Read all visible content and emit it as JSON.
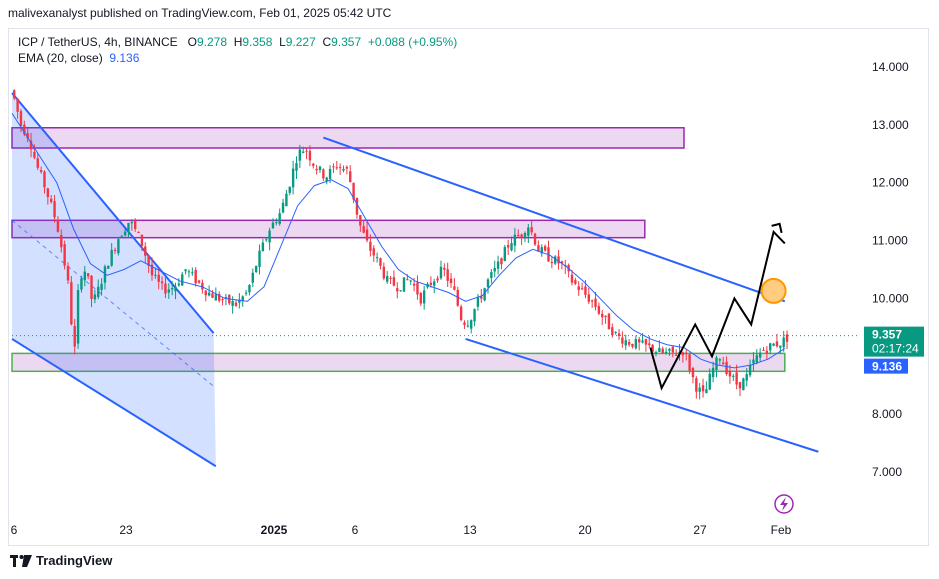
{
  "header": {
    "publisher": "malivexanalyst published on TradingView.com, Feb 01, 2025 05:42 UTC"
  },
  "legend": {
    "symbol": "ICP / TetherUS, 4h, BINANCE",
    "open_label": "O",
    "open": "9.278",
    "high_label": "H",
    "high": "9.358",
    "low_label": "L",
    "low": "9.227",
    "close_label": "C",
    "close": "9.357",
    "change": "+0.088 (+0.95%)",
    "ema_label": "EMA (20, close)",
    "ema_value": "9.136"
  },
  "footer": {
    "brand": "TradingView"
  },
  "colors": {
    "up": "#089981",
    "down": "#f23645",
    "ema": "#2962ff",
    "channel": "#2962ff",
    "zone_purple": "#9c27b0",
    "zone_green": "#4caf50",
    "projection": "#000000",
    "target": "#ff9800"
  },
  "icons": {
    "flash": "lightning-icon",
    "logo": "tradingview-logo-icon"
  },
  "chart_data": {
    "type": "candlestick",
    "symbol": "ICP / TetherUS",
    "interval": "4h",
    "exchange": "BINANCE",
    "ylim": [
      6.8,
      14.35
    ],
    "y_ticks": [
      "14.000",
      "13.000",
      "12.000",
      "11.000",
      "10.000",
      "8.000",
      "7.000"
    ],
    "x_ticks": [
      "6",
      "23",
      "2025",
      "6",
      "13",
      "20",
      "27",
      "Feb"
    ],
    "last_price": "9.357",
    "countdown": "02:17:24",
    "ema_price": "9.136",
    "price_path": [
      [
        0,
        13.6
      ],
      [
        8,
        13.0
      ],
      [
        15,
        12.8
      ],
      [
        22,
        12.3
      ],
      [
        30,
        11.9
      ],
      [
        40,
        11.3
      ],
      [
        48,
        10.5
      ],
      [
        52,
        10.0
      ],
      [
        55,
        8.8
      ],
      [
        60,
        10.4
      ],
      [
        66,
        10.5
      ],
      [
        72,
        9.9
      ],
      [
        78,
        10.2
      ],
      [
        85,
        10.6
      ],
      [
        95,
        11.05
      ],
      [
        105,
        11.35
      ],
      [
        115,
        11.0
      ],
      [
        125,
        10.4
      ],
      [
        135,
        10.15
      ],
      [
        145,
        10.2
      ],
      [
        155,
        10.5
      ],
      [
        165,
        10.3
      ],
      [
        175,
        10.1
      ],
      [
        190,
        9.95
      ],
      [
        200,
        9.9
      ],
      [
        210,
        10.1
      ],
      [
        220,
        10.7
      ],
      [
        230,
        11.2
      ],
      [
        240,
        11.5
      ],
      [
        248,
        12.0
      ],
      [
        255,
        12.5
      ],
      [
        262,
        12.6
      ],
      [
        270,
        12.3
      ],
      [
        280,
        12.1
      ],
      [
        290,
        12.3
      ],
      [
        300,
        12.2
      ],
      [
        310,
        11.3
      ],
      [
        318,
        10.9
      ],
      [
        325,
        10.7
      ],
      [
        335,
        10.3
      ],
      [
        345,
        10.2
      ],
      [
        355,
        10.35
      ],
      [
        365,
        10.0
      ],
      [
        375,
        10.3
      ],
      [
        385,
        10.5
      ],
      [
        395,
        10.1
      ],
      [
        402,
        9.6
      ],
      [
        408,
        9.6
      ],
      [
        415,
        9.9
      ],
      [
        425,
        10.3
      ],
      [
        435,
        10.6
      ],
      [
        445,
        11.0
      ],
      [
        455,
        11.1
      ],
      [
        460,
        11.3
      ],
      [
        465,
        11.1
      ],
      [
        470,
        10.85
      ],
      [
        480,
        10.7
      ],
      [
        490,
        10.6
      ],
      [
        500,
        10.3
      ],
      [
        510,
        10.1
      ],
      [
        520,
        9.9
      ],
      [
        530,
        9.6
      ],
      [
        540,
        9.35
      ],
      [
        550,
        9.25
      ],
      [
        560,
        9.2
      ],
      [
        570,
        9.15
      ],
      [
        580,
        9.05
      ],
      [
        590,
        9.05
      ],
      [
        600,
        9.1
      ],
      [
        610,
        8.5
      ],
      [
        618,
        8.3
      ],
      [
        625,
        8.75
      ],
      [
        632,
        9.0
      ],
      [
        640,
        8.7
      ],
      [
        648,
        8.5
      ],
      [
        655,
        8.6
      ],
      [
        662,
        8.9
      ],
      [
        670,
        9.1
      ],
      [
        680,
        9.2
      ],
      [
        688,
        9.25
      ],
      [
        694,
        9.357
      ]
    ],
    "ema20": [
      [
        0,
        13.2
      ],
      [
        20,
        12.6
      ],
      [
        40,
        12.0
      ],
      [
        55,
        11.2
      ],
      [
        70,
        10.6
      ],
      [
        85,
        10.4
      ],
      [
        100,
        10.5
      ],
      [
        115,
        10.65
      ],
      [
        130,
        10.5
      ],
      [
        150,
        10.3
      ],
      [
        170,
        10.2
      ],
      [
        190,
        10.0
      ],
      [
        210,
        9.95
      ],
      [
        225,
        10.2
      ],
      [
        240,
        10.9
      ],
      [
        255,
        11.6
      ],
      [
        270,
        11.95
      ],
      [
        285,
        12.05
      ],
      [
        300,
        11.9
      ],
      [
        315,
        11.4
      ],
      [
        330,
        10.9
      ],
      [
        345,
        10.5
      ],
      [
        360,
        10.3
      ],
      [
        375,
        10.2
      ],
      [
        390,
        10.1
      ],
      [
        405,
        9.95
      ],
      [
        420,
        10.05
      ],
      [
        435,
        10.4
      ],
      [
        450,
        10.7
      ],
      [
        465,
        10.85
      ],
      [
        480,
        10.75
      ],
      [
        495,
        10.55
      ],
      [
        510,
        10.3
      ],
      [
        525,
        10.0
      ],
      [
        540,
        9.7
      ],
      [
        555,
        9.45
      ],
      [
        570,
        9.3
      ],
      [
        585,
        9.2
      ],
      [
        600,
        9.15
      ],
      [
        615,
        8.95
      ],
      [
        630,
        8.85
      ],
      [
        645,
        8.8
      ],
      [
        660,
        8.85
      ],
      [
        675,
        8.95
      ],
      [
        690,
        9.136
      ]
    ],
    "zones": [
      {
        "kind": "resistance",
        "bar_from": 0,
        "bar_to": 600,
        "y_low": 12.6,
        "y_high": 12.95
      },
      {
        "kind": "resistance",
        "bar_from": 0,
        "bar_to": 565,
        "y_low": 11.05,
        "y_high": 11.35
      },
      {
        "kind": "support",
        "bar_from": 0,
        "bar_to": 690,
        "y_low": 8.74,
        "y_high": 9.05
      }
    ],
    "falling_wedge": {
      "upper": [
        [
          278,
          12.78
        ],
        [
          690,
          9.95
        ]
      ],
      "lower": [
        [
          405,
          9.3
        ],
        [
          720,
          7.35
        ]
      ]
    },
    "prior_channel": {
      "upper": [
        [
          0,
          13.55
        ],
        [
          180,
          9.4
        ]
      ],
      "lower": [
        [
          0,
          9.3
        ],
        [
          182,
          7.1
        ]
      ],
      "mid": [
        [
          0,
          11.35
        ],
        [
          182,
          8.45
        ]
      ]
    },
    "projection": [
      [
        570,
        9.15
      ],
      [
        580,
        8.45
      ],
      [
        610,
        9.55
      ],
      [
        625,
        9.0
      ],
      [
        645,
        10.0
      ],
      [
        660,
        9.55
      ],
      [
        680,
        11.15
      ],
      [
        690,
        10.95
      ]
    ],
    "target_marker": [
      680,
      10.13
    ]
  }
}
